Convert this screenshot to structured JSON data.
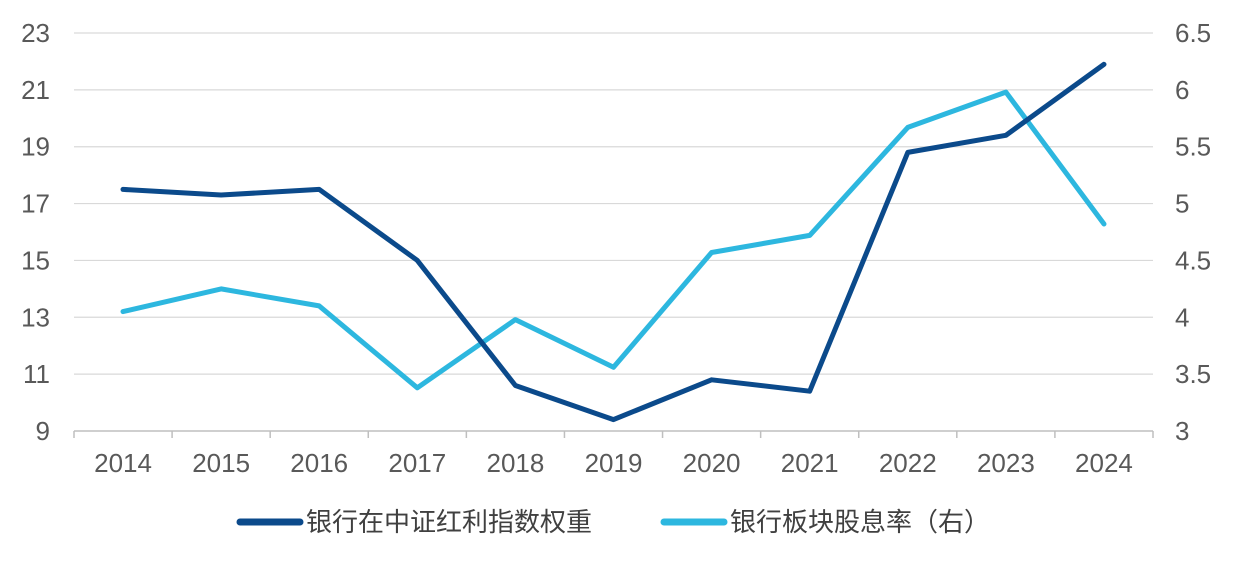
{
  "chart_data": {
    "type": "line",
    "x": [
      "2014",
      "2015",
      "2016",
      "2017",
      "2018",
      "2019",
      "2020",
      "2021",
      "2022",
      "2023",
      "2024"
    ],
    "series": [
      {
        "name": "银行在中证红利指数权重",
        "axis": "left",
        "color": "#0b4a8b",
        "values": [
          17.5,
          17.3,
          17.5,
          15.0,
          10.6,
          9.4,
          10.8,
          10.4,
          18.8,
          19.4,
          21.9
        ]
      },
      {
        "name": "银行板块股息率（右）",
        "axis": "right",
        "color": "#2db7df",
        "values": [
          4.05,
          4.25,
          4.1,
          3.38,
          3.98,
          3.56,
          4.57,
          4.72,
          5.67,
          5.98,
          4.82
        ]
      }
    ],
    "left_axis": {
      "min": 9,
      "max": 23,
      "ticks": [
        9,
        11,
        13,
        15,
        17,
        19,
        21,
        23
      ],
      "tick_labels": [
        "9",
        "11",
        "13",
        "15",
        "17",
        "19",
        "21",
        "23"
      ]
    },
    "right_axis": {
      "min": 3,
      "max": 6.5,
      "ticks": [
        3,
        3.5,
        4,
        4.5,
        5,
        5.5,
        6,
        6.5
      ],
      "tick_labels": [
        "3",
        "3.5",
        "4",
        "4.5",
        "5",
        "5.5",
        "6",
        "6.5"
      ]
    },
    "grid": true,
    "legend": "bottom"
  },
  "colors": {
    "grid": "#d9d9d9",
    "axis": "#bfbfbf"
  }
}
